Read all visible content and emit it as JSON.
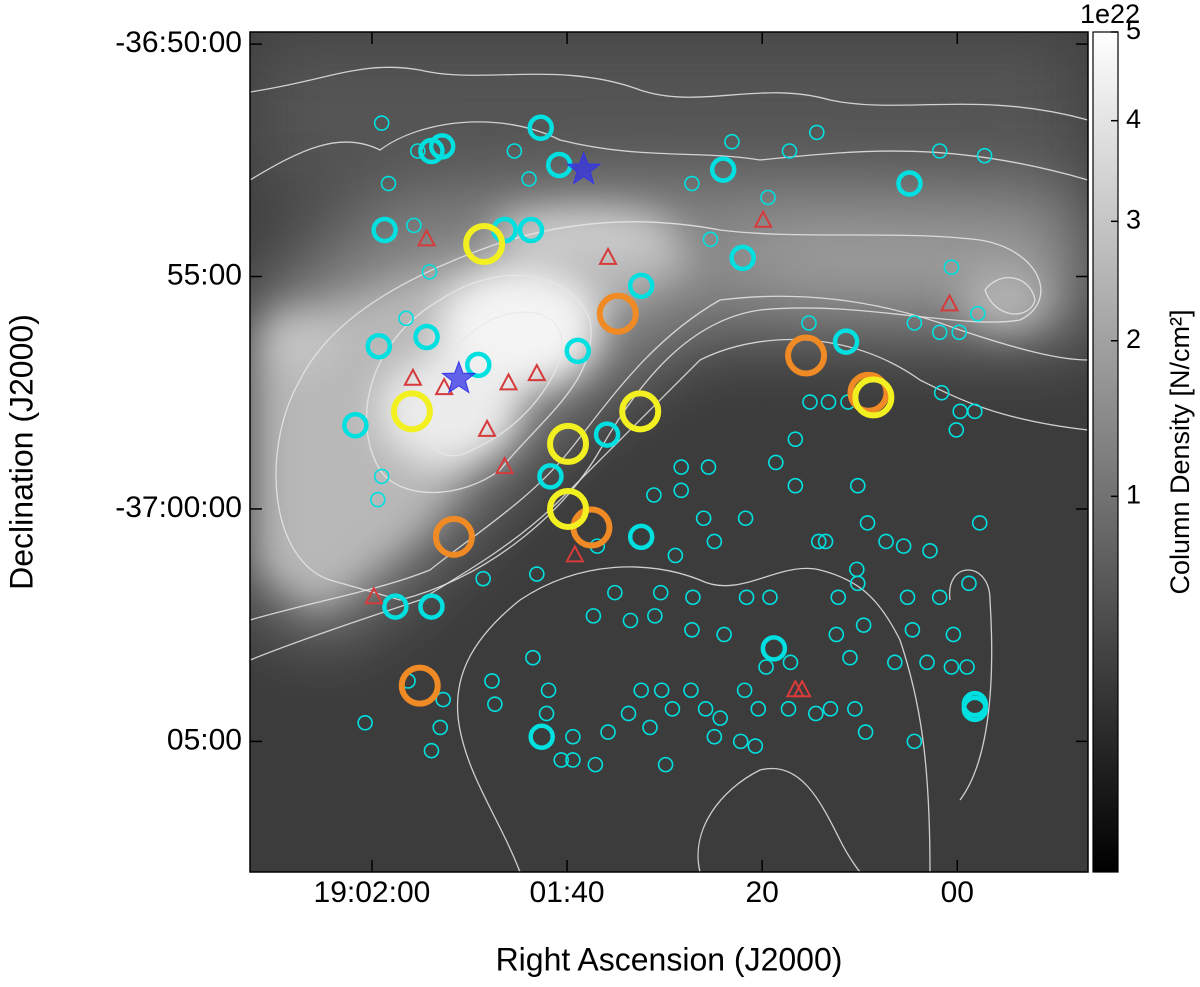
{
  "chart_data": {
    "type": "scatter",
    "x_label": "Right Ascension (J2000)",
    "y_label": "Declination (J2000)",
    "xlim": [
      132.5,
      46.6
    ],
    "ylim": [
      -2227.81,
      -2209.74
    ],
    "xticks": [
      {
        "value": 120,
        "label": "19:02:00"
      },
      {
        "value": 100,
        "label": "01:40"
      },
      {
        "value": 80,
        "label": "20"
      },
      {
        "value": 60,
        "label": "00"
      }
    ],
    "yticks": [
      {
        "value": -2210,
        "label": "-36:50:00"
      },
      {
        "value": -2215,
        "label": "55:00"
      },
      {
        "value": -2220,
        "label": "-37:00:00"
      },
      {
        "value": -2225,
        "label": "05:00"
      }
    ],
    "colorbar": {
      "label": "Column Density [N/cm²]",
      "scale_label": "1e22",
      "scale": "sqrt",
      "lim": [
        0,
        5
      ],
      "ticks": [
        1,
        2,
        3,
        4,
        5
      ]
    },
    "series": [
      {
        "color": "#00e0e0",
        "marker": "ring-small",
        "x": [
          119.0,
          115.3,
          105.4,
          103.9,
          87.2,
          83.1,
          79.4,
          77.2,
          74.4,
          61.8,
          57.2,
          118.3,
          115.7,
          114.1,
          116.5,
          85.3,
          64.4,
          61.8,
          59.8,
          60.6,
          57.9,
          75.2,
          73.2,
          75.1,
          71.2,
          61.6,
          59.7,
          58.2,
          60.1,
          76.6,
          76.6,
          70.2,
          78.6,
          88.3,
          85.5,
          88.3,
          91.1,
          119.0,
          119.4,
          108.6,
          103.1,
          86.0,
          81.7,
          74.2,
          73.5,
          69.2,
          67.3,
          65.5,
          62.8,
          57.7,
          58.8,
          70.3,
          70.2,
          61.8,
          65.1,
          64.6,
          60.4,
          59.0,
          60.6,
          63.1,
          69.6,
          72.4,
          66.4,
          71.0,
          79.2,
          81.6,
          87.1,
          90.4,
          95.1,
          91.0,
          87.2,
          83.9,
          77.1,
          79.6,
          81.8,
          92.4,
          90.3,
          87.3,
          85.8,
          84.3,
          80.4,
          77.3,
          74.5,
          73.0,
          70.5,
          69.4,
          82.2,
          80.7,
          84.9,
          89.2,
          91.5,
          89.9,
          93.7,
          95.8,
          97.1,
          99.4,
          100.6,
          99.4,
          102.1,
          101.9,
          103.5,
          107.7,
          107.4,
          112.7,
          116.3,
          120.7,
          113.9,
          113.0,
          96.9,
          93.5,
          97.3,
          88.9,
          84.9,
          72.2,
          64.4
        ],
        "y": [
          -2211.7,
          -2212.3,
          -2212.3,
          -2212.9,
          -2213.0,
          -2212.1,
          -2213.3,
          -2212.3,
          -2211.9,
          -2212.3,
          -2212.4,
          -2213.0,
          -2213.9,
          -2214.9,
          -2215.9,
          -2214.2,
          -2216.0,
          -2216.2,
          -2216.2,
          -2214.8,
          -2215.8,
          -2216.0,
          -2217.7,
          -2217.7,
          -2217.7,
          -2217.5,
          -2217.9,
          -2217.9,
          -2218.3,
          -2218.5,
          -2219.5,
          -2219.5,
          -2219.0,
          -2219.1,
          -2219.1,
          -2219.6,
          -2219.7,
          -2219.3,
          -2219.8,
          -2221.5,
          -2221.4,
          -2220.2,
          -2220.2,
          -2220.7,
          -2220.7,
          -2220.3,
          -2220.7,
          -2220.8,
          -2220.9,
          -2220.3,
          -2221.6,
          -2221.3,
          -2221.6,
          -2221.9,
          -2221.9,
          -2222.6,
          -2222.7,
          -2223.4,
          -2223.4,
          -2223.3,
          -2222.5,
          -2222.7,
          -2223.3,
          -2223.2,
          -2221.9,
          -2221.9,
          -2221.9,
          -2221.8,
          -2221.8,
          -2222.3,
          -2222.6,
          -2222.7,
          -2223.3,
          -2223.4,
          -2223.9,
          -2223.9,
          -2223.9,
          -2223.9,
          -2224.3,
          -2224.5,
          -2224.3,
          -2224.3,
          -2224.4,
          -2224.3,
          -2224.3,
          -2224.8,
          -2225.0,
          -2225.1,
          -2224.9,
          -2224.3,
          -2224.7,
          -2225.5,
          -2224.4,
          -2224.8,
          -2225.5,
          -2225.4,
          -2225.4,
          -2224.9,
          -2224.4,
          -2223.9,
          -2223.2,
          -2223.7,
          -2224.2,
          -2224.1,
          -2223.7,
          -2224.6,
          -2225.2,
          -2224.7,
          -2220.8,
          -2222.4,
          -2222.3,
          -2221.0,
          -2220.7,
          -2221.9,
          -2225.0
        ]
      },
      {
        "color": "#00e0e0",
        "marker": "ring-medium",
        "x": [
          113.9,
          112.8,
          102.7,
          100.8,
          84.0,
          64.9,
          118.7,
          106.4,
          103.7,
          82.0,
          92.4,
          114.4,
          119.3,
          109.1,
          98.9,
          71.4,
          121.7,
          95.9,
          101.7,
          92.4,
          117.6,
          113.9,
          78.8,
          102.6,
          58.2,
          58.2
        ],
        "y": [
          -2212.3,
          -2212.2,
          -2211.8,
          -2212.6,
          -2212.7,
          -2213.0,
          -2214.0,
          -2214.0,
          -2214.0,
          -2214.6,
          -2215.2,
          -2216.3,
          -2216.5,
          -2216.9,
          -2216.6,
          -2216.4,
          -2218.2,
          -2218.4,
          -2219.3,
          -2220.6,
          -2222.1,
          -2222.1,
          -2223.0,
          -2224.9,
          -2224.2,
          -2224.3
        ]
      },
      {
        "color": "#f08a24",
        "marker": "ring-large",
        "x": [
          94.8,
          75.5,
          97.5,
          111.6,
          115.1,
          69.1
        ],
        "y": [
          -2215.8,
          -2216.7,
          -2220.4,
          -2220.6,
          -2223.8,
          -2217.5
        ]
      },
      {
        "color": "#f2f020",
        "marker": "ring-large",
        "x": [
          108.5,
          115.9,
          99.9,
          92.5,
          99.9,
          68.6
        ],
        "y": [
          -2214.3,
          -2217.9,
          -2218.6,
          -2217.9,
          -2220.0,
          -2217.6
        ]
      },
      {
        "color": "#d63a3a",
        "marker": "triangle",
        "x": [
          114.4,
          95.8,
          79.9,
          60.8,
          115.8,
          112.6,
          106.0,
          103.1,
          108.2,
          106.4,
          99.2,
          119.8,
          76.6,
          75.9
        ],
        "y": [
          -2214.2,
          -2214.6,
          -2213.8,
          -2215.6,
          -2217.2,
          -2217.4,
          -2217.3,
          -2217.1,
          -2218.3,
          -2219.1,
          -2221.0,
          -2221.9,
          -2223.9,
          -2223.9
        ]
      },
      {
        "color": "#3434e8",
        "marker": "star",
        "x": [
          98.3,
          111.1
        ],
        "y": [
          -2212.7,
          -2217.2
        ]
      }
    ]
  }
}
